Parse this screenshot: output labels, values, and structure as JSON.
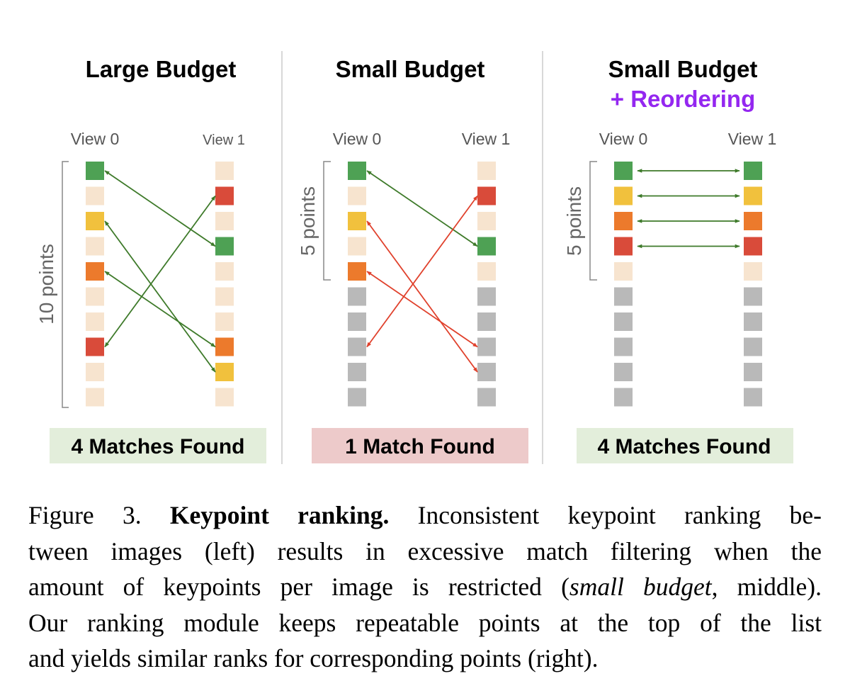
{
  "colors": {
    "green": "#4ea154",
    "yellow": "#f1c13d",
    "orange": "#ec7a2c",
    "red": "#d94b3a",
    "empty": "#f7e4cf",
    "gray": "#b9b9b9",
    "arrow_green": "#3e7a2a",
    "arrow_red": "#e0412c",
    "accent_purple": "#9427f0",
    "box_green": "#e3eedb",
    "box_red": "#edcaca"
  },
  "panels": [
    {
      "title": "Large Budget",
      "subtitle": "",
      "view0_label": "View 0",
      "view1_label": "View 1",
      "bracket_label": "10 points",
      "result": "4 Matches Found",
      "result_tone": "green",
      "view0_points": [
        "green",
        "empty",
        "yellow",
        "empty",
        "orange",
        "empty",
        "empty",
        "red",
        "empty",
        "empty"
      ],
      "view1_points": [
        "empty",
        "red",
        "empty",
        "green",
        "empty",
        "empty",
        "empty",
        "orange",
        "yellow",
        "empty"
      ],
      "matches": [
        {
          "from": 0,
          "to": 3,
          "tone": "green"
        },
        {
          "from": 2,
          "to": 8,
          "tone": "green"
        },
        {
          "from": 4,
          "to": 7,
          "tone": "green"
        },
        {
          "from": 7,
          "to": 1,
          "tone": "green"
        }
      ]
    },
    {
      "title": "Small Budget",
      "subtitle": "",
      "view0_label": "View 0",
      "view1_label": "View 1",
      "bracket_label": "5 points",
      "result": "1 Match Found",
      "result_tone": "red",
      "view0_points": [
        "green",
        "empty",
        "yellow",
        "empty",
        "orange",
        "gray",
        "gray",
        "gray",
        "gray",
        "gray"
      ],
      "view1_points": [
        "empty",
        "red",
        "empty",
        "green",
        "empty",
        "gray",
        "gray",
        "gray",
        "gray",
        "gray"
      ],
      "matches": [
        {
          "from": 0,
          "to": 3,
          "tone": "green"
        },
        {
          "from": 2,
          "to": 8,
          "tone": "red"
        },
        {
          "from": 4,
          "to": 7,
          "tone": "red"
        },
        {
          "from": 7,
          "to": 1,
          "tone": "red"
        }
      ]
    },
    {
      "title": "Small Budget",
      "subtitle": "+ Reordering",
      "view0_label": "View 0",
      "view1_label": "View 1",
      "bracket_label": "5 points",
      "result": "4 Matches Found",
      "result_tone": "green",
      "view0_points": [
        "green",
        "yellow",
        "orange",
        "red",
        "empty",
        "gray",
        "gray",
        "gray",
        "gray",
        "gray"
      ],
      "view1_points": [
        "green",
        "yellow",
        "orange",
        "red",
        "empty",
        "gray",
        "gray",
        "gray",
        "gray",
        "gray"
      ],
      "matches": [
        {
          "from": 0,
          "to": 0,
          "tone": "green"
        },
        {
          "from": 1,
          "to": 1,
          "tone": "green"
        },
        {
          "from": 2,
          "to": 2,
          "tone": "green"
        },
        {
          "from": 3,
          "to": 3,
          "tone": "green"
        }
      ]
    }
  ],
  "caption": {
    "label": "Figure 3.",
    "title": "Keypoint ranking.",
    "line1_rest": "Inconsistent keypoint ranking be-",
    "line2": "tween images (left) results in excessive match filtering when the",
    "line3_pre": "amount of keypoints per image is restricted (",
    "line3_em": "small budget",
    "line3_post": ", middle).",
    "line4": "Our ranking module keeps repeatable points at the top of the list",
    "line5": "and yields similar ranks for corresponding points (right)."
  }
}
